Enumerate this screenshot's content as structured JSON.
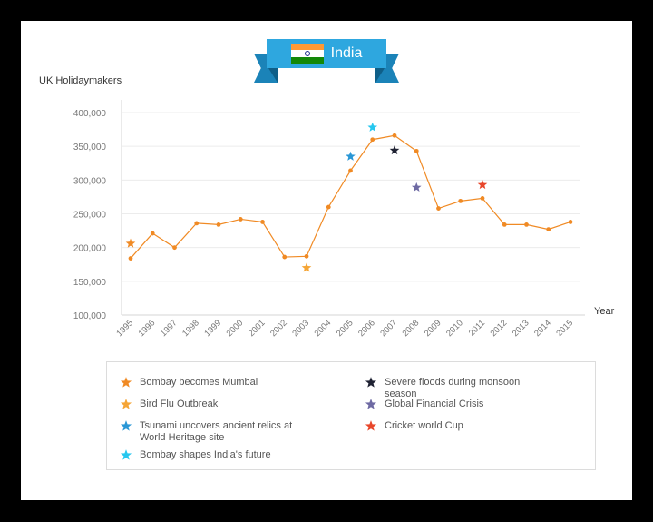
{
  "header": {
    "country": "India",
    "flag_colors": [
      "#ff9933",
      "#ffffff",
      "#138808"
    ],
    "banner_color": "#2ea7df"
  },
  "chart_data": {
    "type": "line",
    "ylabel": "UK Holidaymakers",
    "xlabel": "Year",
    "ylim": [
      100000,
      400000
    ],
    "yticks": [
      100000,
      150000,
      200000,
      250000,
      300000,
      350000,
      400000
    ],
    "ytick_labels": [
      "100,000",
      "150,000",
      "200,000",
      "250,000",
      "300,000",
      "350,000",
      "400,000"
    ],
    "categories": [
      "1995",
      "1996",
      "1997",
      "1998",
      "1999",
      "2000",
      "2001",
      "2002",
      "2003",
      "2004",
      "2005",
      "2006",
      "2007",
      "2008",
      "2009",
      "2010",
      "2011",
      "2012",
      "2013",
      "2014",
      "2015"
    ],
    "series": [
      {
        "color": "#f08a24",
        "values": [
          184000,
          221000,
          200000,
          236000,
          234000,
          242000,
          238000,
          186000,
          187000,
          260000,
          314000,
          360000,
          366000,
          343000,
          258000,
          269000,
          273000,
          234000,
          234000,
          227000,
          238000
        ]
      }
    ],
    "events": [
      {
        "label": "Bombay becomes Mumbai",
        "year": "1995",
        "value": 206000,
        "color": "#f08a24"
      },
      {
        "label": "Bird Flu Outbreak",
        "year": "2003",
        "value": 170000,
        "color": "#f5a536"
      },
      {
        "label": "Tsunami uncovers ancient relics at World Heritage site",
        "year": "2005",
        "value": 335000,
        "color": "#2a97d6"
      },
      {
        "label": "Bombay shapes India's future",
        "year": "2006",
        "value": 378000,
        "color": "#26c7ef"
      },
      {
        "label": "Severe floods during monsoon season",
        "year": "2007",
        "value": 344000,
        "color": "#1f2233"
      },
      {
        "label": "Global Financial Crisis",
        "year": "2008",
        "value": 289000,
        "color": "#6e6aa3"
      },
      {
        "label": "Cricket world Cup",
        "year": "2011",
        "value": 293000,
        "color": "#e8462a"
      }
    ],
    "grid": true,
    "legend": "bottom"
  }
}
